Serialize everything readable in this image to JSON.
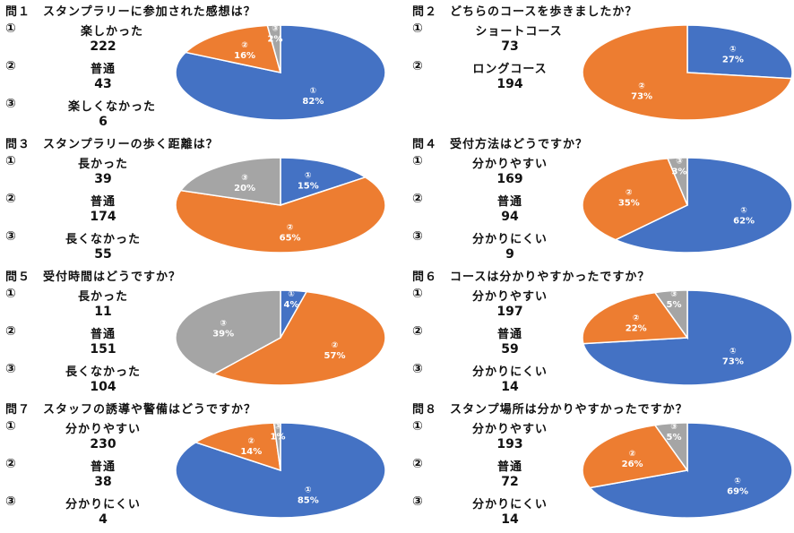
{
  "colors": {
    "blue": "#4472C4",
    "orange": "#ED7D31",
    "gray": "#A5A5A5"
  },
  "chart_data": [
    {
      "type": "pie",
      "title": "問１　スタンプラリーに参加された感想は？",
      "categories": [
        "楽しかった",
        "普通",
        "楽しくなかった"
      ],
      "counts": [
        "222",
        "43",
        "6"
      ],
      "values": [
        82,
        16,
        2
      ],
      "percent_labels": [
        "82%",
        "16%",
        "2%"
      ],
      "slice_labels": [
        "①",
        "②",
        "③"
      ],
      "option_marks": [
        "①",
        "②",
        "③"
      ]
    },
    {
      "type": "pie",
      "title": "問２　どちらのコースを歩きましたか？",
      "categories": [
        "ショートコース",
        "ロングコース"
      ],
      "counts": [
        "73",
        "194"
      ],
      "values": [
        27,
        73
      ],
      "percent_labels": [
        "27%",
        "73%"
      ],
      "slice_labels": [
        "①",
        "②"
      ],
      "option_marks": [
        "①",
        "②"
      ]
    },
    {
      "type": "pie",
      "title": "問３　スタンプラリーの歩く距離は？",
      "categories": [
        "長かった",
        "普通",
        "長くなかった"
      ],
      "counts": [
        "39",
        "174",
        "55"
      ],
      "values": [
        15,
        65,
        20
      ],
      "percent_labels": [
        "15%",
        "65%",
        "20%"
      ],
      "slice_labels": [
        "①",
        "②",
        "③"
      ],
      "option_marks": [
        "①",
        "②",
        "③"
      ]
    },
    {
      "type": "pie",
      "title": "問４　受付方法はどうですか？",
      "categories": [
        "分かりやすい",
        "普通",
        "分かりにくい"
      ],
      "counts": [
        "169",
        "94",
        "9"
      ],
      "values": [
        62,
        35,
        3
      ],
      "percent_labels": [
        "62%",
        "35%",
        "3%"
      ],
      "slice_labels": [
        "①",
        "②",
        "③"
      ],
      "option_marks": [
        "①",
        "②",
        "③"
      ]
    },
    {
      "type": "pie",
      "title": "問５　受付時間はどうですか？",
      "categories": [
        "長かった",
        "普通",
        "長くなかった"
      ],
      "counts": [
        "11",
        "151",
        "104"
      ],
      "values": [
        4,
        57,
        39
      ],
      "percent_labels": [
        "4%",
        "57%",
        "39%"
      ],
      "slice_labels": [
        "①",
        "②",
        "③"
      ],
      "option_marks": [
        "①",
        "②",
        "③"
      ]
    },
    {
      "type": "pie",
      "title": "問６　コースは分かりやすかったですか？",
      "categories": [
        "分かりやすい",
        "普通",
        "分かりにくい"
      ],
      "counts": [
        "197",
        "59",
        "14"
      ],
      "values": [
        73,
        22,
        5
      ],
      "percent_labels": [
        "73%",
        "22%",
        "5%"
      ],
      "slice_labels": [
        "①",
        "②",
        "③"
      ],
      "option_marks": [
        "①",
        "②",
        "③"
      ]
    },
    {
      "type": "pie",
      "title": "問７　スタッフの誘導や警備はどうですか？",
      "categories": [
        "分かりやすい",
        "普通",
        "分かりにくい"
      ],
      "counts": [
        "230",
        "38",
        "4"
      ],
      "values": [
        85,
        14,
        1
      ],
      "percent_labels": [
        "85%",
        "14%",
        "1%"
      ],
      "slice_labels": [
        "①",
        "②",
        "③"
      ],
      "option_marks": [
        "①",
        "②",
        "③"
      ]
    },
    {
      "type": "pie",
      "title": "問８　スタンプ場所は分かりやすかったですか？",
      "categories": [
        "分かりやすい",
        "普通",
        "分かりにくい"
      ],
      "counts": [
        "193",
        "72",
        "14"
      ],
      "values": [
        69,
        26,
        5
      ],
      "percent_labels": [
        "69%",
        "26%",
        "5%"
      ],
      "slice_labels": [
        "①",
        "②",
        "③"
      ],
      "option_marks": [
        "①",
        "②",
        "③"
      ]
    }
  ]
}
